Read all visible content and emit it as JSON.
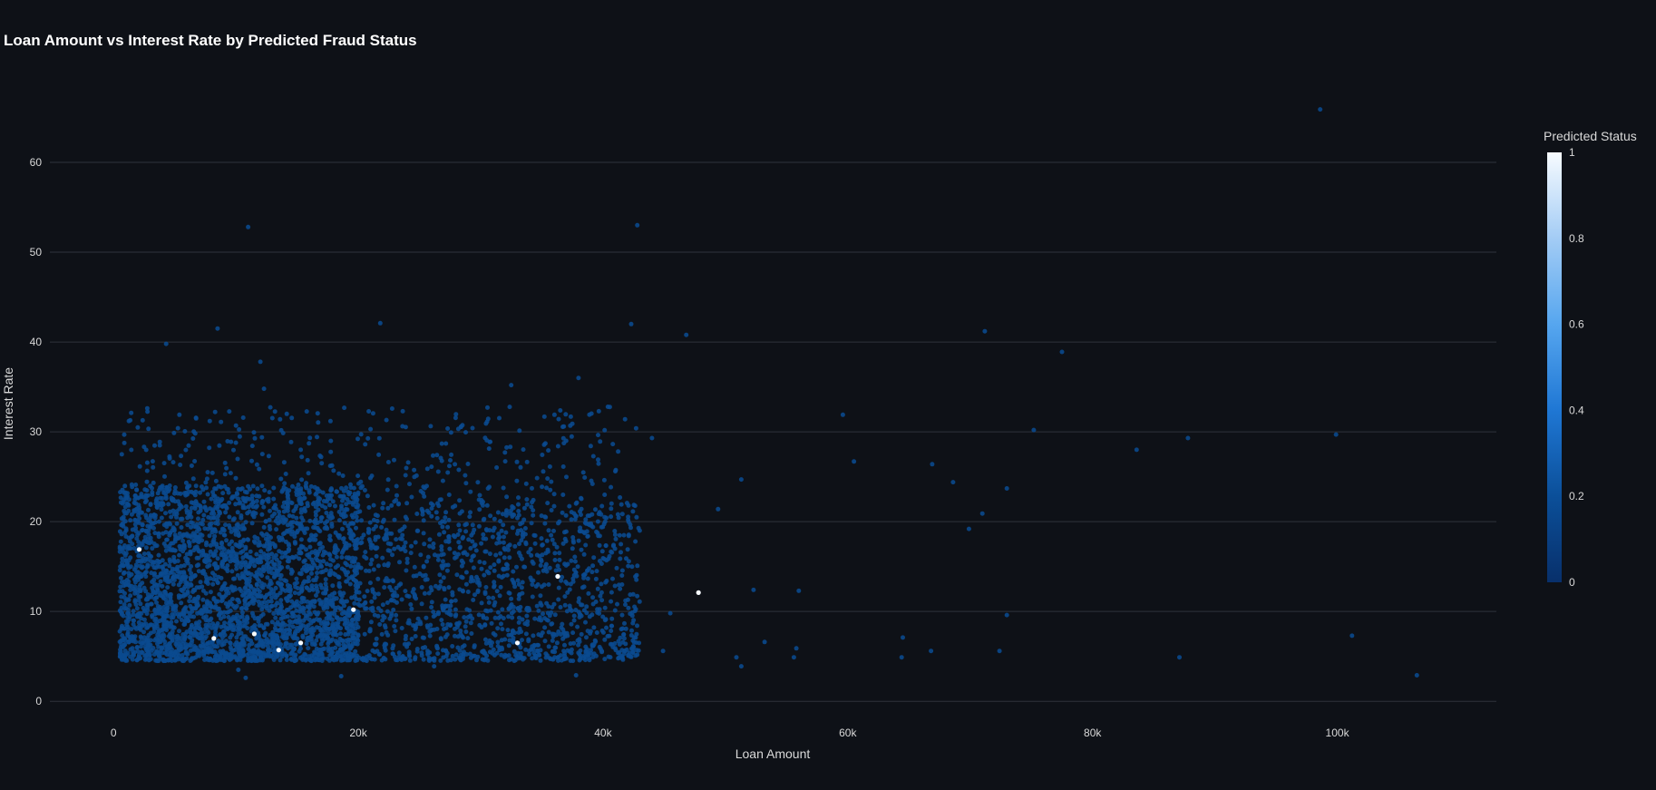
{
  "chart_data": {
    "type": "scatter",
    "title": "Loan Amount vs Interest Rate by Predicted Fraud Status",
    "xlabel": "Loan Amount",
    "ylabel": "Interest Rate",
    "xlim": [
      -5200,
      113000
    ],
    "ylim": [
      -2,
      70
    ],
    "x_ticks": [
      0,
      20000,
      40000,
      60000,
      80000,
      100000
    ],
    "x_tick_labels": [
      "0",
      "20k",
      "40k",
      "60k",
      "80k",
      "100k"
    ],
    "y_ticks": [
      0,
      10,
      20,
      30,
      40,
      50,
      60
    ],
    "y_tick_labels": [
      "0",
      "10",
      "20",
      "30",
      "40",
      "50",
      "60"
    ],
    "grid": "horizontal",
    "colorscale": [
      "#08306b",
      "#0b4f99",
      "#1f77d4",
      "#56a6ef",
      "#a3ccf5",
      "#f7fbff"
    ],
    "colorbar": {
      "title": "Predicted Status",
      "range": [
        0,
        1
      ],
      "ticks": [
        0,
        0.2,
        0.4,
        0.6,
        0.8,
        1
      ],
      "tick_labels": [
        "0",
        "0.2",
        "0.4",
        "0.6",
        "0.8",
        "1"
      ],
      "placement": "right"
    },
    "series": [
      {
        "status": 0,
        "points": [
          [
            98600,
            65.9
          ],
          [
            11000,
            52.8
          ],
          [
            42800,
            53.0
          ],
          [
            21800,
            42.1
          ],
          [
            8500,
            41.5
          ],
          [
            4300,
            39.8
          ],
          [
            12000,
            37.8
          ],
          [
            12300,
            34.8
          ],
          [
            42300,
            42.0
          ],
          [
            46800,
            40.8
          ],
          [
            71200,
            41.2
          ],
          [
            77500,
            38.9
          ],
          [
            38000,
            36.0
          ],
          [
            32500,
            35.2
          ],
          [
            59600,
            31.9
          ],
          [
            60500,
            26.7
          ],
          [
            66900,
            26.4
          ],
          [
            68600,
            24.4
          ],
          [
            75200,
            30.2
          ],
          [
            83600,
            28.0
          ],
          [
            87800,
            29.3
          ],
          [
            99900,
            29.7
          ],
          [
            51300,
            24.7
          ],
          [
            49400,
            21.4
          ],
          [
            71000,
            20.9
          ],
          [
            73000,
            23.7
          ],
          [
            69900,
            19.2
          ],
          [
            44000,
            29.3
          ],
          [
            42700,
            30.4
          ],
          [
            41800,
            31.4
          ],
          [
            39600,
            26.9
          ],
          [
            52300,
            12.4
          ],
          [
            56000,
            12.3
          ],
          [
            45500,
            9.8
          ],
          [
            73000,
            9.6
          ],
          [
            64500,
            7.1
          ],
          [
            72400,
            5.6
          ],
          [
            66800,
            5.6
          ],
          [
            64400,
            4.9
          ],
          [
            87100,
            4.9
          ],
          [
            101200,
            7.3
          ],
          [
            106500,
            2.9
          ],
          [
            50900,
            4.9
          ],
          [
            51300,
            3.9
          ],
          [
            53200,
            6.6
          ],
          [
            55800,
            5.9
          ],
          [
            55600,
            4.9
          ],
          [
            44900,
            5.6
          ],
          [
            37800,
            2.9
          ],
          [
            18600,
            2.8
          ],
          [
            10800,
            2.6
          ],
          [
            10200,
            3.5
          ],
          [
            26200,
            3.9
          ]
        ]
      },
      {
        "status": 1,
        "points": [
          [
            2100,
            16.9
          ],
          [
            8200,
            7.0
          ],
          [
            11500,
            7.5
          ],
          [
            13500,
            5.7
          ],
          [
            19600,
            10.2
          ],
          [
            33000,
            6.5
          ],
          [
            36300,
            13.9
          ],
          [
            47800,
            12.1
          ],
          [
            15300,
            6.5
          ]
        ]
      }
    ],
    "clusters": [
      {
        "status": 0,
        "count": 3000,
        "x_range": [
          500,
          20000
        ],
        "y_range": [
          4.5,
          24
        ]
      },
      {
        "status": 0,
        "count": 1300,
        "x_range": [
          20000,
          43000
        ],
        "y_range": [
          4.5,
          22
        ]
      },
      {
        "status": 0,
        "count": 350,
        "x_range": [
          500,
          42000
        ],
        "y_range": [
          22,
          32.8
        ]
      }
    ]
  }
}
